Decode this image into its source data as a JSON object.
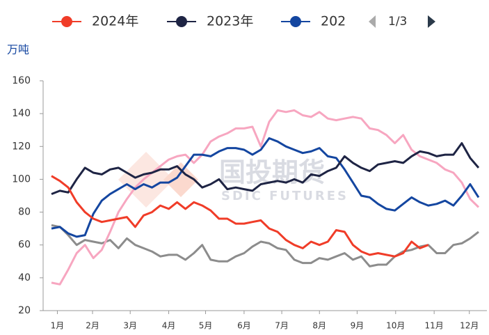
{
  "chart_data": {
    "type": "line",
    "y_label": "万吨",
    "watermark": {
      "cn": "国投期货",
      "en": "SDIC FUTURES"
    },
    "legend_page": "1/3",
    "x": [
      1,
      2,
      3,
      4,
      5,
      6,
      7,
      8,
      9,
      10,
      11,
      12,
      13,
      14,
      15,
      16,
      17,
      18,
      19,
      20,
      21,
      22,
      23,
      24,
      25,
      26,
      27,
      28,
      29,
      30,
      31,
      32,
      33,
      34,
      35,
      36,
      37,
      38,
      39,
      40,
      41,
      42,
      43,
      44,
      45,
      46,
      47,
      48,
      49,
      50,
      51,
      52
    ],
    "xlim": [
      0,
      53
    ],
    "xticks": [
      {
        "value": 1.7,
        "label": "1月"
      },
      {
        "value": 5.9,
        "label": "2月"
      },
      {
        "value": 10.4,
        "label": "3月"
      },
      {
        "value": 15,
        "label": "4月"
      },
      {
        "value": 19.4,
        "label": "5月"
      },
      {
        "value": 24,
        "label": "6月"
      },
      {
        "value": 28.5,
        "label": "7月"
      },
      {
        "value": 33,
        "label": "8月"
      },
      {
        "value": 37.5,
        "label": "9月"
      },
      {
        "value": 42.1,
        "label": "10月"
      },
      {
        "value": 46.7,
        "label": "11月"
      },
      {
        "value": 50.9,
        "label": "12月"
      }
    ],
    "ylim": [
      20,
      160
    ],
    "yticks": [
      20,
      40,
      60,
      80,
      100,
      120,
      140,
      160
    ],
    "grid": false,
    "legend": "top",
    "series": [
      {
        "name": "2024年",
        "color": "#f03c28",
        "values": [
          102,
          99,
          95,
          86,
          80,
          76,
          74,
          75,
          76,
          77,
          71,
          78,
          80,
          84,
          82,
          86,
          82,
          86,
          84,
          81,
          76,
          76,
          73,
          73,
          74,
          75,
          70,
          68,
          63,
          60,
          58,
          62,
          60,
          62,
          69,
          68,
          60,
          56,
          54,
          55,
          54,
          53,
          55,
          62,
          58,
          60,
          null,
          null,
          null,
          null,
          null,
          null
        ]
      },
      {
        "name": "2023年",
        "color": "#1e2444",
        "values": [
          91,
          93,
          92,
          100,
          107,
          104,
          103,
          106,
          107,
          104,
          101,
          103,
          104,
          106,
          106,
          108,
          103,
          100,
          95,
          97,
          100,
          94,
          95,
          94,
          93,
          97,
          98,
          99,
          98,
          100,
          98,
          103,
          102,
          105,
          107,
          114,
          110,
          107,
          105,
          109,
          110,
          111,
          110,
          114,
          117,
          116,
          114,
          115,
          115,
          122,
          113,
          107
        ]
      },
      {
        "name": "202",
        "color": "#1446a0",
        "values": [
          70,
          71,
          67,
          65,
          66,
          79,
          87,
          91,
          94,
          97,
          94,
          97,
          95,
          98,
          98,
          101,
          108,
          115,
          115,
          114,
          117,
          119,
          119,
          118,
          115,
          118,
          125,
          123,
          120,
          118,
          116,
          117,
          119,
          114,
          113,
          106,
          98,
          90,
          89,
          85,
          82,
          81,
          85,
          89,
          86,
          84,
          85,
          87,
          84,
          90,
          97,
          89
        ]
      },
      {
        "color": "#f7a6c0",
        "values": [
          37,
          36,
          45,
          55,
          60,
          52,
          57,
          68,
          80,
          88,
          95,
          100,
          104,
          108,
          112,
          114,
          115,
          110,
          115,
          123,
          126,
          128,
          131,
          131,
          132,
          120,
          135,
          142,
          141,
          142,
          139,
          138,
          141,
          137,
          136,
          137,
          138,
          137,
          131,
          130,
          127,
          122,
          127,
          118,
          114,
          112,
          110,
          106,
          104,
          98,
          88,
          83
        ]
      },
      {
        "color": "#8c8c8c",
        "values": [
          72,
          71,
          66,
          60,
          63,
          62,
          61,
          63,
          58,
          64,
          60,
          58,
          56,
          53,
          54,
          54,
          51,
          55,
          60,
          51,
          50,
          50,
          53,
          55,
          59,
          62,
          61,
          58,
          57,
          51,
          49,
          49,
          52,
          51,
          53,
          55,
          51,
          53,
          47,
          48,
          48,
          53,
          56,
          57,
          59,
          60,
          55,
          55,
          60,
          61,
          64,
          68
        ]
      }
    ]
  }
}
